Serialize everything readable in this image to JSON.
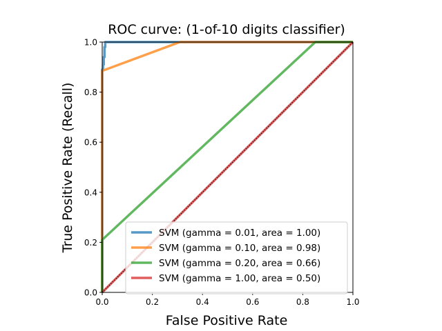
{
  "chart_data": {
    "type": "line",
    "title": "ROC curve: (1-of-10 digits classifier)",
    "xlabel": "False Positive Rate",
    "ylabel": "True Positive Rate (Recall)",
    "xlim": [
      0.0,
      1.0
    ],
    "ylim": [
      0.0,
      1.0
    ],
    "xticks": [
      "0.0",
      "0.2",
      "0.4",
      "0.6",
      "0.8",
      "1.0"
    ],
    "yticks": [
      "0.0",
      "0.2",
      "0.4",
      "0.6",
      "0.8",
      "1.0"
    ],
    "grid": false,
    "legend_position": "lower-right",
    "series": [
      {
        "name": "SVM (gamma = 0.01, area = 1.00)",
        "color": "#1f77b4",
        "x": [
          0.0,
          0.0,
          0.003,
          0.003,
          0.006,
          0.006,
          0.009,
          0.009,
          0.012,
          0.012,
          1.0
        ],
        "y": [
          0.0,
          0.89,
          0.89,
          0.91,
          0.91,
          0.94,
          0.94,
          0.98,
          0.98,
          1.0,
          1.0
        ]
      },
      {
        "name": "SVM (gamma = 0.10, area = 0.98)",
        "color": "#ff7f0e",
        "x": [
          0.0,
          0.0,
          0.31,
          1.0
        ],
        "y": [
          0.0,
          0.885,
          1.0,
          1.0
        ]
      },
      {
        "name": "SVM (gamma = 0.20, area = 0.66)",
        "color": "#2ca02c",
        "x": [
          0.0,
          0.0,
          0.85,
          1.0
        ],
        "y": [
          0.0,
          0.21,
          1.0,
          1.0
        ]
      },
      {
        "name": "SVM (gamma = 1.00, area = 0.50)",
        "color": "#d62728",
        "x": [
          0.0,
          1.0
        ],
        "y": [
          0.0,
          1.0
        ]
      }
    ],
    "diagonal": {
      "x": [
        0.0,
        1.0
      ],
      "y": [
        0.0,
        1.0
      ],
      "color": "#000000",
      "style": "dotted"
    }
  }
}
